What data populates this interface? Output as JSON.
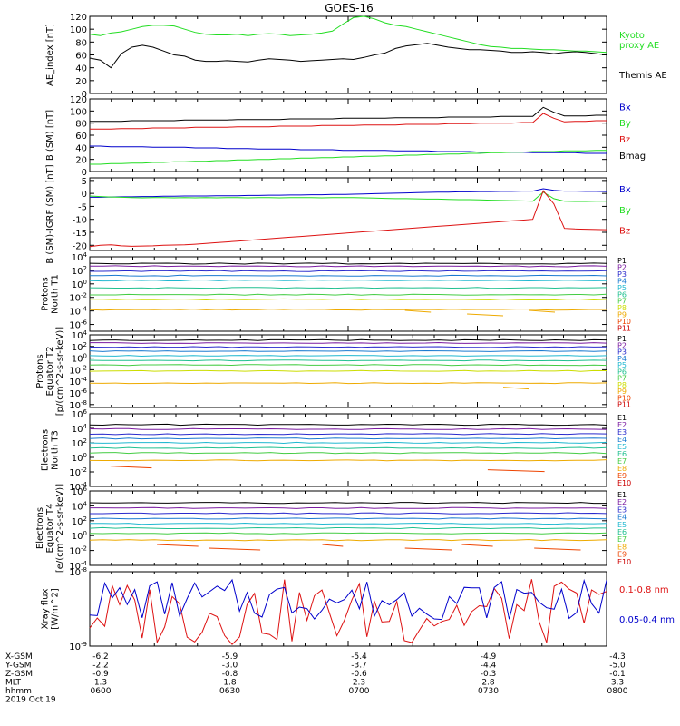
{
  "title": "GOES-16",
  "colors": {
    "black": "#000000",
    "green": "#22dd22",
    "red": "#dd1111",
    "blue": "#0000cc",
    "p1": "#000000",
    "p2": "#7a1aa0",
    "p3": "#2a2acc",
    "p4": "#1a7ad0",
    "p5": "#20b8d0",
    "p6": "#20c090",
    "p7": "#44cc44",
    "p8": "#ccdd00",
    "p9": "#eeaa00",
    "p10": "#ee4400",
    "p11": "#cc0000"
  },
  "chart_data": [
    {
      "type": "line",
      "ylabel": "AE_index [nT]",
      "ylim": [
        0,
        120
      ],
      "ticks": [
        "120",
        "100",
        "80",
        "60",
        "40",
        "20",
        "0"
      ],
      "series": [
        {
          "name": "Kyoto proxy AE",
          "label_lines": [
            "Kyoto",
            "proxy AE"
          ],
          "color": "green",
          "values": [
            92,
            90,
            94,
            96,
            100,
            104,
            106,
            106,
            105,
            100,
            95,
            92,
            91,
            91,
            92,
            90,
            92,
            93,
            92,
            90,
            91,
            92,
            94,
            97,
            108,
            118,
            120,
            116,
            110,
            106,
            104,
            100,
            96,
            92,
            88,
            84,
            80,
            76,
            73,
            72,
            70,
            70,
            69,
            68,
            68,
            67,
            66,
            66,
            65,
            64
          ]
        },
        {
          "name": "Themis AE",
          "label_lines": [
            "Themis AE"
          ],
          "color": "black",
          "values": [
            55,
            52,
            40,
            62,
            72,
            75,
            72,
            66,
            60,
            58,
            52,
            50,
            50,
            51,
            50,
            49,
            52,
            54,
            53,
            52,
            50,
            51,
            52,
            53,
            54,
            53,
            56,
            60,
            63,
            70,
            74,
            76,
            78,
            75,
            72,
            70,
            68,
            68,
            67,
            66,
            64,
            64,
            65,
            64,
            62,
            64,
            65,
            64,
            62,
            60
          ]
        }
      ]
    },
    {
      "type": "line",
      "ylabel": "B (SM) [nT]",
      "ylim": [
        0,
        120
      ],
      "ticks": [
        "120",
        "100",
        "80",
        "60",
        "40",
        "20",
        "0"
      ],
      "series": [
        {
          "name": "Bx",
          "label_lines": [
            "Bx"
          ],
          "color": "blue",
          "values": [
            42,
            42,
            41,
            41,
            41,
            41,
            40,
            40,
            40,
            40,
            39,
            39,
            39,
            38,
            38,
            38,
            37,
            37,
            37,
            37,
            36,
            36,
            36,
            36,
            35,
            35,
            35,
            35,
            35,
            34,
            34,
            34,
            34,
            33,
            33,
            33,
            33,
            32,
            32,
            32,
            32,
            32,
            31,
            31,
            31,
            31,
            31,
            30,
            30,
            30
          ]
        },
        {
          "name": "By",
          "label_lines": [
            "By"
          ],
          "color": "green",
          "values": [
            12,
            12,
            13,
            13,
            14,
            14,
            15,
            15,
            16,
            16,
            17,
            17,
            18,
            18,
            19,
            19,
            20,
            20,
            21,
            21,
            22,
            22,
            23,
            23,
            24,
            24,
            25,
            25,
            26,
            26,
            27,
            27,
            28,
            28,
            29,
            29,
            30,
            30,
            31,
            31,
            32,
            32,
            33,
            33,
            33,
            34,
            34,
            34,
            35,
            35
          ]
        },
        {
          "name": "Bz",
          "label_lines": [
            "Bz"
          ],
          "color": "red",
          "values": [
            70,
            70,
            70,
            71,
            71,
            71,
            72,
            72,
            72,
            72,
            73,
            73,
            73,
            73,
            74,
            74,
            74,
            74,
            75,
            75,
            75,
            75,
            76,
            76,
            76,
            76,
            77,
            77,
            77,
            77,
            78,
            78,
            78,
            78,
            79,
            79,
            79,
            80,
            80,
            80,
            80,
            81,
            81,
            96,
            88,
            82,
            83,
            83,
            84,
            84
          ]
        },
        {
          "name": "Bmag",
          "label_lines": [
            "Bmag"
          ],
          "color": "black",
          "values": [
            83,
            83,
            83,
            83,
            84,
            84,
            84,
            84,
            84,
            85,
            85,
            85,
            85,
            85,
            86,
            86,
            86,
            86,
            86,
            87,
            87,
            87,
            87,
            87,
            88,
            88,
            88,
            88,
            88,
            89,
            89,
            89,
            89,
            89,
            90,
            90,
            90,
            90,
            90,
            91,
            91,
            91,
            91,
            106,
            98,
            92,
            92,
            92,
            93,
            93
          ]
        }
      ]
    },
    {
      "type": "line",
      "ylabel": "B (SM)-IGRF (SM) [nT]",
      "ylim": [
        -22,
        6
      ],
      "ticks": [
        "5",
        "0",
        "-5",
        "-10",
        "-15",
        "-20"
      ],
      "series": [
        {
          "name": "Bx",
          "label_lines": [
            "Bx"
          ],
          "color": "blue",
          "values": [
            -1.5,
            -1.5,
            -1.4,
            -1.3,
            -1.3,
            -1.2,
            -1.2,
            -1.1,
            -1.1,
            -1.0,
            -1.0,
            -1.0,
            -0.9,
            -0.9,
            -0.9,
            -0.8,
            -0.8,
            -0.7,
            -0.7,
            -0.6,
            -0.6,
            -0.5,
            -0.5,
            -0.4,
            -0.4,
            -0.3,
            -0.2,
            -0.1,
            0.0,
            0.1,
            0.2,
            0.3,
            0.4,
            0.5,
            0.5,
            0.6,
            0.6,
            0.7,
            0.7,
            0.8,
            0.8,
            0.9,
            0.9,
            1.8,
            1.2,
            0.9,
            0.9,
            0.8,
            0.8,
            0.7
          ]
        },
        {
          "name": "By",
          "label_lines": [
            "By"
          ],
          "color": "green",
          "values": [
            -1.0,
            -1.2,
            -1.4,
            -1.5,
            -1.6,
            -1.7,
            -1.6,
            -1.6,
            -1.7,
            -1.6,
            -1.7,
            -1.6,
            -1.7,
            -1.6,
            -1.6,
            -1.7,
            -1.6,
            -1.6,
            -1.7,
            -1.6,
            -1.6,
            -1.6,
            -1.7,
            -1.6,
            -1.6,
            -1.6,
            -1.7,
            -1.8,
            -1.9,
            -2.0,
            -2.0,
            -2.1,
            -2.2,
            -2.2,
            -2.3,
            -2.4,
            -2.4,
            -2.5,
            -2.6,
            -2.7,
            -2.8,
            -2.9,
            -3.0,
            0.5,
            -2.0,
            -3.0,
            -3.1,
            -3.1,
            -3.0,
            -3.0
          ]
        },
        {
          "name": "Bz",
          "label_lines": [
            "Bz"
          ],
          "color": "red",
          "values": [
            -20.5,
            -20.0,
            -19.8,
            -20.2,
            -20.4,
            -20.3,
            -20.2,
            -20.0,
            -19.9,
            -19.8,
            -19.6,
            -19.3,
            -19.0,
            -18.7,
            -18.4,
            -18.1,
            -17.8,
            -17.5,
            -17.2,
            -16.9,
            -16.6,
            -16.3,
            -16.0,
            -15.7,
            -15.4,
            -15.1,
            -14.8,
            -14.5,
            -14.2,
            -13.9,
            -13.6,
            -13.3,
            -13.0,
            -12.7,
            -12.4,
            -12.1,
            -11.8,
            -11.5,
            -11.2,
            -10.9,
            -10.6,
            -10.3,
            -10.0,
            1.0,
            -4.0,
            -13.5,
            -13.7,
            -13.8,
            -13.9,
            -14.0
          ]
        }
      ]
    },
    {
      "type": "line",
      "ylabel_lines": [
        "Protons",
        "North T1"
      ],
      "log": true,
      "ylim": [
        -7,
        4
      ],
      "ticks": [
        "10^4",
        "10^2",
        "10^0",
        "10^-2",
        "10^-4",
        "10^-6"
      ],
      "channels": [
        "P1",
        "P2",
        "P3",
        "P4",
        "P5",
        "P6",
        "P7",
        "P8",
        "P9",
        "P10",
        "P11"
      ],
      "channel_colors": [
        "p1",
        "p2",
        "p3",
        "p4",
        "p5",
        "p6",
        "p7",
        "p8",
        "p9",
        "p10",
        "p11"
      ],
      "levels": [
        3.0,
        2.6,
        1.9,
        1.2,
        0.5,
        -0.6,
        -1.6,
        -2.3,
        -3.8,
        -99,
        -99
      ],
      "fragments": [
        {
          "ch": 8,
          "from": 0.61,
          "to": 0.66
        },
        {
          "ch": 8,
          "from": 0.73,
          "to": 0.8
        },
        {
          "ch": 8,
          "from": 0.85,
          "to": 0.9
        }
      ]
    },
    {
      "type": "line",
      "ylabel_lines": [
        "Protons",
        "Equator T2",
        "[p/(cm^2-s-sr-keV)]"
      ],
      "log": true,
      "ylim": [
        -8.5,
        4
      ],
      "ticks": [
        "10^4",
        "10^2",
        "10^0",
        "10^-2",
        "10^-4",
        "10^-6",
        "10^-8"
      ],
      "channels": [
        "P1",
        "P2",
        "P3",
        "P4",
        "P5",
        "P6",
        "P7",
        "P8",
        "P9",
        "P10",
        "P11"
      ],
      "channel_colors": [
        "p1",
        "p2",
        "p3",
        "p4",
        "p5",
        "p6",
        "p7",
        "p8",
        "p9",
        "p10",
        "p11"
      ],
      "levels": [
        3.1,
        2.6,
        1.9,
        1.2,
        0.4,
        -0.4,
        -1.2,
        -2.2,
        -4.3,
        -99,
        -99
      ],
      "fragments": [
        {
          "ch": 8,
          "from": 0.8,
          "to": 0.85
        }
      ]
    },
    {
      "type": "line",
      "ylabel_lines": [
        "Electrons",
        "North T3"
      ],
      "log": true,
      "ylim": [
        -4,
        6
      ],
      "ticks": [
        "10^6",
        "10^4",
        "10^2",
        "10^0",
        "10^-2",
        "10^-4"
      ],
      "channels": [
        "E1",
        "E2",
        "E3",
        "E4",
        "E5",
        "E6",
        "E7",
        "E8",
        "E9",
        "E10"
      ],
      "channel_colors": [
        "p1",
        "p2",
        "p3",
        "p4",
        "p5",
        "p6",
        "p7",
        "p9",
        "p10",
        "p11"
      ],
      "levels": [
        4.5,
        3.9,
        3.2,
        2.6,
        2.0,
        1.3,
        0.6,
        -0.4,
        -99,
        -99
      ],
      "fragments": [
        {
          "ch": 8,
          "from": 0.04,
          "to": 0.12
        },
        {
          "ch": 8,
          "from": 0.77,
          "to": 0.88
        }
      ]
    },
    {
      "type": "line",
      "ylabel_lines": [
        "Electrons",
        "Equator T4",
        "[e/(cm^2-s-sr-keV)]"
      ],
      "log": true,
      "ylim": [
        -4,
        6
      ],
      "ticks": [
        "10^6",
        "10^4",
        "10^2",
        "10^0",
        "10^-2",
        "10^-4"
      ],
      "channels": [
        "E1",
        "E2",
        "E3",
        "E4",
        "E5",
        "E6",
        "E7",
        "E8",
        "E9",
        "E10"
      ],
      "channel_colors": [
        "p1",
        "p2",
        "p3",
        "p4",
        "p5",
        "p6",
        "p7",
        "p9",
        "p10",
        "p11"
      ],
      "levels": [
        4.4,
        3.7,
        3.0,
        2.3,
        1.6,
        1.0,
        0.3,
        -0.6,
        -99,
        -99
      ],
      "fragments": [
        {
          "ch": 8,
          "from": 0.13,
          "to": 0.21
        },
        {
          "ch": 8,
          "from": 0.23,
          "to": 0.33
        },
        {
          "ch": 8,
          "from": 0.45,
          "to": 0.49
        },
        {
          "ch": 8,
          "from": 0.61,
          "to": 0.7
        },
        {
          "ch": 8,
          "from": 0.72,
          "to": 0.78
        },
        {
          "ch": 8,
          "from": 0.86,
          "to": 0.95
        }
      ]
    },
    {
      "type": "line",
      "ylabel_lines": [
        "Xray flux",
        "[W/m^2]"
      ],
      "log": true,
      "ylim": [
        -9,
        -8
      ],
      "ticks": [
        "10^-8",
        "10^-9"
      ],
      "series": [
        {
          "name": "0.1-0.8 nm",
          "label_lines": [
            "0.1-0.8 nm"
          ],
          "color": "red"
        },
        {
          "name": "0.05-0.4 nm",
          "label_lines": [
            "0.05-0.4 nm"
          ],
          "color": "blue"
        }
      ]
    }
  ],
  "x_axis": {
    "row_labels": [
      "X-GSM",
      "Y-GSM",
      "Z-GSM",
      "MLT",
      "hhmm",
      "2019 Oct 19"
    ],
    "columns": [
      [
        "-6.2",
        "-2.2",
        "-0.9",
        "1.3",
        "0600"
      ],
      [
        "-5.9",
        "-3.0",
        "-0.8",
        "1.8",
        "0630"
      ],
      [
        "-5.4",
        "-3.7",
        "-0.6",
        "2.3",
        "0700"
      ],
      [
        "-4.9",
        "-4.4",
        "-0.3",
        "2.8",
        "0730"
      ],
      [
        "-4.3",
        "-5.0",
        "-0.1",
        "3.3",
        "0800"
      ]
    ]
  }
}
